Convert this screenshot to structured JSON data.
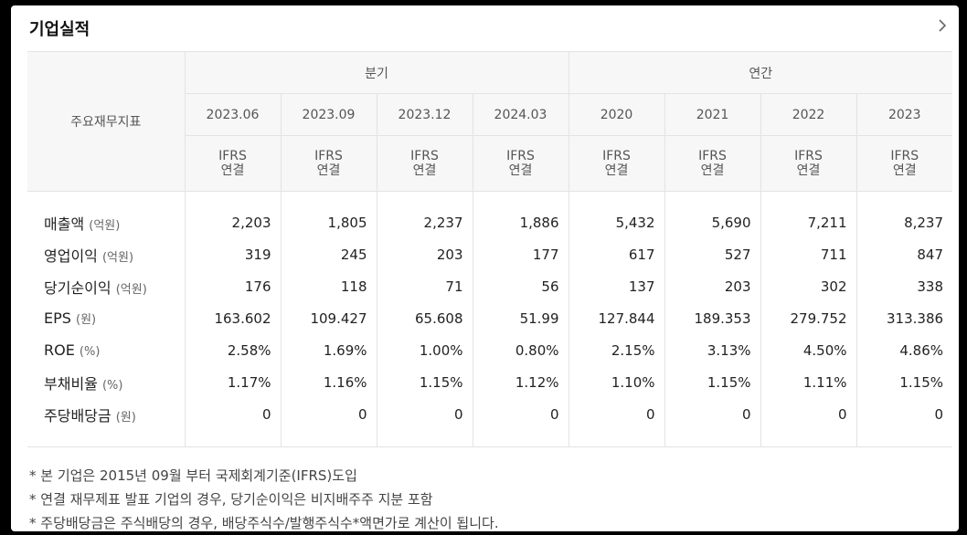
{
  "card": {
    "title": "기업실적"
  },
  "table": {
    "corner_label": "주요재무지표",
    "groups": [
      "분기",
      "연간"
    ],
    "periods": [
      "2023.06",
      "2023.09",
      "2023.12",
      "2024.03",
      "2020",
      "2021",
      "2022",
      "2023"
    ],
    "standard_line1": "IFRS",
    "standard_line2": "연결",
    "rows": [
      {
        "label": "매출액",
        "unit": "(억원)",
        "values": [
          "2,203",
          "1,805",
          "2,237",
          "1,886",
          "5,432",
          "5,690",
          "7,211",
          "8,237"
        ]
      },
      {
        "label": "영업이익",
        "unit": "(억원)",
        "values": [
          "319",
          "245",
          "203",
          "177",
          "617",
          "527",
          "711",
          "847"
        ]
      },
      {
        "label": "당기순이익",
        "unit": "(억원)",
        "values": [
          "176",
          "118",
          "71",
          "56",
          "137",
          "203",
          "302",
          "338"
        ]
      },
      {
        "label": "EPS",
        "unit": "(원)",
        "values": [
          "163.602",
          "109.427",
          "65.608",
          "51.99",
          "127.844",
          "189.353",
          "279.752",
          "313.386"
        ]
      },
      {
        "label": "ROE",
        "unit": "(%)",
        "values": [
          "2.58%",
          "1.69%",
          "1.00%",
          "0.80%",
          "2.15%",
          "3.13%",
          "4.50%",
          "4.86%"
        ]
      },
      {
        "label": "부채비율",
        "unit": "(%)",
        "values": [
          "1.17%",
          "1.16%",
          "1.15%",
          "1.12%",
          "1.10%",
          "1.15%",
          "1.11%",
          "1.15%"
        ]
      },
      {
        "label": "주당배당금",
        "unit": "(원)",
        "values": [
          "0",
          "0",
          "0",
          "0",
          "0",
          "0",
          "0",
          "0"
        ]
      }
    ]
  },
  "notes": [
    "* 본 기업은 2015년 09월 부터 국제회계기준(IFRS)도입",
    "* 연결 재무제표 발표 기업의 경우, 당기순이익은 비지배주주 지분 포함",
    "* 주당배당금은 주식배당의 경우, 배당주식수/발행주식수*액면가로 계산이 됩니다."
  ]
}
